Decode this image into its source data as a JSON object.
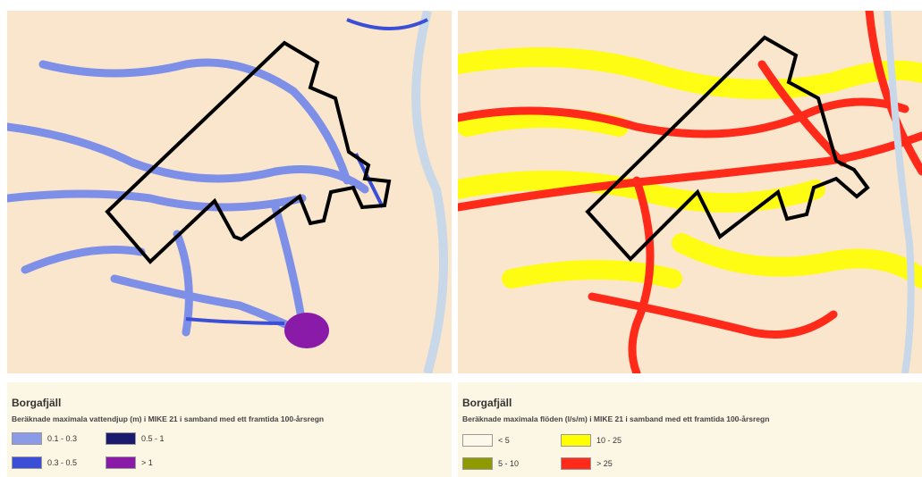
{
  "panels": [
    {
      "title": "Borgafjäll",
      "subtitle": "Beräknade maximala vattendjup (m) i MIKE 21 i samband med ett framtida 100-årsregn",
      "legend": [
        {
          "label": "0.1 - 0.3",
          "color": "#8c9be6"
        },
        {
          "label": "0.5 - 1",
          "color": "#1a1a6e"
        },
        {
          "label": "0.3 - 0.5",
          "color": "#3a4fd6"
        },
        {
          "label": "> 1",
          "color": "#8a1aa8"
        }
      ]
    },
    {
      "title": "Borgafjäll",
      "subtitle": "Beräknade maximala flöden (l/s/m) i MIKE 21 i samband med ett framtida 100-årsregn",
      "legend": [
        {
          "label": "< 5",
          "color": "#fdf9ea"
        },
        {
          "label": "10 - 25",
          "color": "#ffff00"
        },
        {
          "label": "5 - 10",
          "color": "#8f9a00"
        },
        {
          "label": "> 25",
          "color": "#ff2a1a"
        }
      ]
    }
  ]
}
